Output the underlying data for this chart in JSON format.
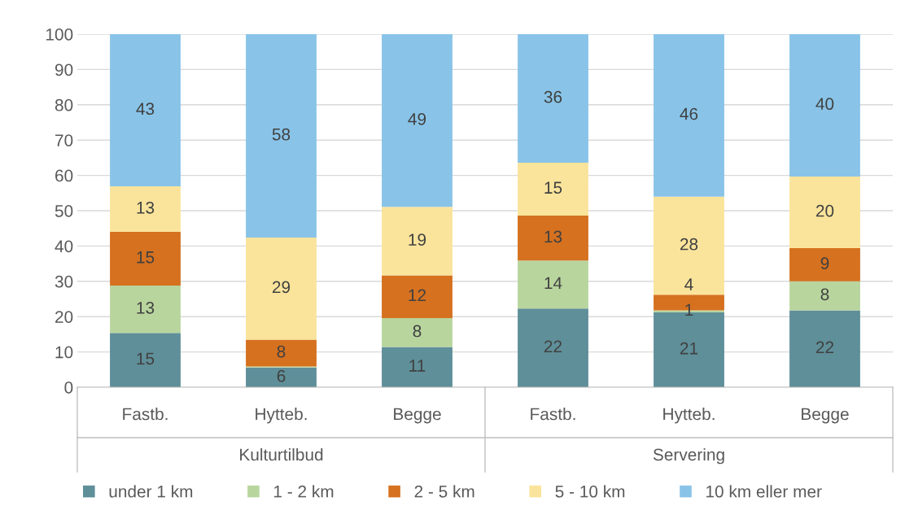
{
  "chart_data": {
    "type": "bar",
    "stacked": true,
    "categories": [
      "Fastb.",
      "Hytteb.",
      "Begge",
      "Fastb.",
      "Hytteb.",
      "Begge"
    ],
    "annotations": [
      "Kulturtilbud",
      "Servering"
    ],
    "series": [
      {
        "name": "under 1 km",
        "color": "#5f8f99",
        "values": [
          15.4,
          5.6,
          11.4,
          22.3,
          21.2,
          21.8
        ],
        "value_labels": [
          "15",
          "6",
          "11",
          "22",
          "21",
          "22"
        ]
      },
      {
        "name": "1 - 2 km",
        "color": "#b9d59e",
        "values": [
          13.4,
          0.3,
          8.2,
          13.6,
          0.6,
          8.2
        ],
        "value_labels": [
          "13",
          null,
          "8",
          "14",
          "1",
          "8"
        ]
      },
      {
        "name": "2 - 5 km",
        "color": "#d5711f",
        "values": [
          15.2,
          7.6,
          12.1,
          12.7,
          4.4,
          9.4
        ],
        "value_labels": [
          "15",
          "8",
          "12",
          "13",
          "4",
          "9"
        ]
      },
      {
        "name": "5 - 10 km",
        "color": "#fae49b",
        "values": [
          12.9,
          28.9,
          19.4,
          15.0,
          27.8,
          20.3
        ],
        "value_labels": [
          "13",
          "29",
          "19",
          "15",
          "28",
          "20"
        ]
      },
      {
        "name": "10 km eller mer",
        "color": "#89c4e8",
        "values": [
          43.1,
          57.6,
          48.9,
          36.4,
          46.0,
          40.3
        ],
        "value_labels": [
          "43",
          "58",
          "49",
          "36",
          "46",
          "40"
        ]
      }
    ],
    "ylim": [
      0,
      100
    ],
    "yticks": [
      0,
      10,
      20,
      30,
      40,
      50,
      60,
      70,
      80,
      90,
      100
    ],
    "grid": "y",
    "legend": "bottom"
  }
}
